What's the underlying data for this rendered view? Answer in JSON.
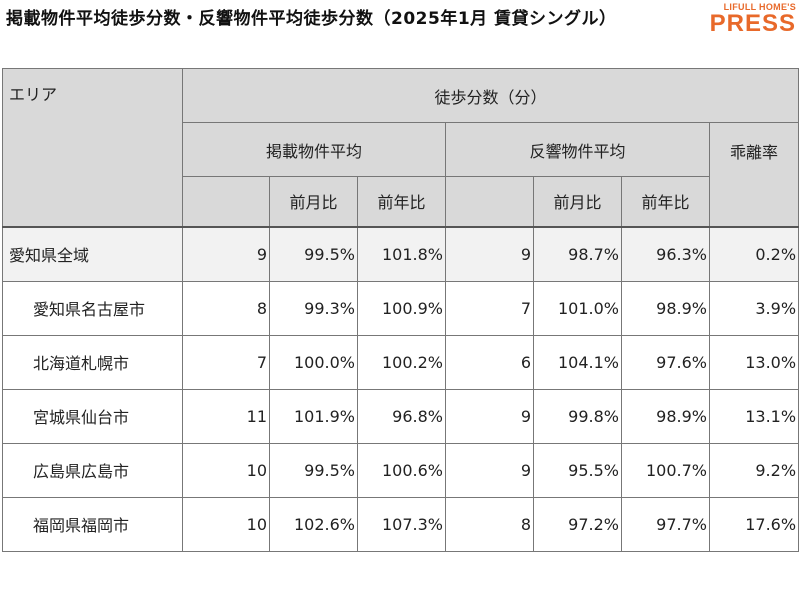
{
  "title": "掲載物件平均徒歩分数・反響物件平均徒歩分数（2025年1月 賃貸シングル）",
  "logo": {
    "top": "LIFULL HOME'S",
    "bottom": "PRESS"
  },
  "colors": {
    "header_bg": "#d9d9d9",
    "first_row_bg": "#f2f2f2",
    "logo": "#e8692a"
  },
  "chart_data": {
    "type": "table",
    "headers": {
      "area": "エリア",
      "group": "徒歩分数（分）",
      "listed": "掲載物件平均",
      "response": "反響物件平均",
      "divergence": "乖離率",
      "mom": "前月比",
      "yoy": "前年比"
    },
    "rows": [
      {
        "area": "愛知県全域",
        "listed": "9",
        "listed_mom": "99.5%",
        "listed_yoy": "101.8%",
        "response": "9",
        "response_mom": "98.7%",
        "response_yoy": "96.3%",
        "divergence": "0.2%"
      },
      {
        "area": "愛知県名古屋市",
        "listed": "8",
        "listed_mom": "99.3%",
        "listed_yoy": "100.9%",
        "response": "7",
        "response_mom": "101.0%",
        "response_yoy": "98.9%",
        "divergence": "3.9%"
      },
      {
        "area": "北海道札幌市",
        "listed": "7",
        "listed_mom": "100.0%",
        "listed_yoy": "100.2%",
        "response": "6",
        "response_mom": "104.1%",
        "response_yoy": "97.6%",
        "divergence": "13.0%"
      },
      {
        "area": "宮城県仙台市",
        "listed": "11",
        "listed_mom": "101.9%",
        "listed_yoy": "96.8%",
        "response": "9",
        "response_mom": "99.8%",
        "response_yoy": "98.9%",
        "divergence": "13.1%"
      },
      {
        "area": "広島県広島市",
        "listed": "10",
        "listed_mom": "99.5%",
        "listed_yoy": "100.6%",
        "response": "9",
        "response_mom": "95.5%",
        "response_yoy": "100.7%",
        "divergence": "9.2%"
      },
      {
        "area": "福岡県福岡市",
        "listed": "10",
        "listed_mom": "102.6%",
        "listed_yoy": "107.3%",
        "response": "8",
        "response_mom": "97.2%",
        "response_yoy": "97.7%",
        "divergence": "17.6%"
      }
    ]
  }
}
